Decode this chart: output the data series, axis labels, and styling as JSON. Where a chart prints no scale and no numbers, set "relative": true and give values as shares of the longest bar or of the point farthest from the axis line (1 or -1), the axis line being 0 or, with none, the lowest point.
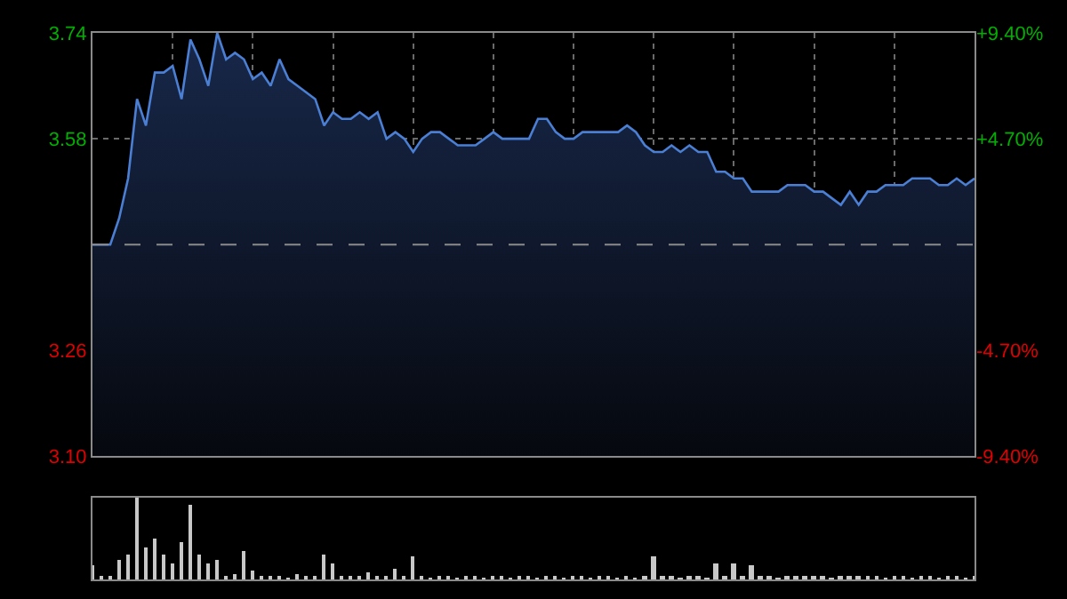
{
  "chart_data": [
    {
      "type": "area",
      "categories": [
        null,
        null,
        null,
        null,
        null,
        null,
        null,
        null,
        null,
        null,
        null,
        null,
        null,
        null,
        null,
        null,
        null,
        null,
        null,
        null,
        null,
        null,
        null,
        null,
        null,
        null,
        null,
        null,
        null,
        null,
        null,
        null,
        null,
        null,
        null,
        null,
        null,
        null,
        null,
        null,
        null,
        null,
        null,
        null,
        null,
        null,
        null,
        null,
        null,
        null,
        null,
        null,
        null,
        null,
        null,
        null,
        null,
        null,
        null,
        null,
        null,
        null,
        null,
        null,
        null,
        null,
        null,
        null,
        null,
        null,
        null,
        null,
        null,
        null,
        null,
        null,
        null,
        null,
        null,
        null,
        null,
        null,
        null,
        null,
        null,
        null,
        null,
        null,
        null,
        null,
        null,
        null,
        null,
        null,
        null,
        null,
        null,
        null,
        null,
        null
      ],
      "series": [
        {
          "color": "#4a7fd4",
          "values": [
            3.42,
            3.42,
            3.42,
            3.46,
            3.52,
            3.64,
            3.6,
            3.68,
            3.68,
            3.69,
            3.64,
            3.73,
            3.7,
            3.66,
            3.74,
            3.7,
            3.71,
            3.7,
            3.67,
            3.68,
            3.66,
            3.7,
            3.67,
            3.66,
            3.65,
            3.64,
            3.6,
            3.62,
            3.61,
            3.61,
            3.62,
            3.61,
            3.62,
            3.58,
            3.59,
            3.58,
            3.56,
            3.58,
            3.59,
            3.59,
            3.58,
            3.57,
            3.57,
            3.57,
            3.58,
            3.59,
            3.58,
            3.58,
            3.58,
            3.58,
            3.61,
            3.61,
            3.59,
            3.58,
            3.58,
            3.59,
            3.59,
            3.59,
            3.59,
            3.59,
            3.6,
            3.59,
            3.57,
            3.56,
            3.56,
            3.57,
            3.56,
            3.57,
            3.56,
            3.56,
            3.53,
            3.53,
            3.52,
            3.52,
            3.5,
            3.5,
            3.5,
            3.5,
            3.51,
            3.51,
            3.51,
            3.5,
            3.5,
            3.49,
            3.48,
            3.5,
            3.48,
            3.5,
            3.5,
            3.51,
            3.51,
            3.51,
            3.52,
            3.52,
            3.52,
            3.51,
            3.51,
            3.52,
            3.51,
            3.52
          ]
        }
      ],
      "ylim": [
        3.1,
        3.74
      ],
      "yticks": [
        {
          "value": 3.1,
          "label": "3.10"
        },
        3.26,
        3.58,
        3.74
      ],
      "y2lim": [
        -9.4,
        9.4
      ],
      "y2ticks": [
        {
          "value": -9.4,
          "label": "-9.40%"
        },
        {
          "value": -4.7,
          "label": "-4.70%"
        },
        {
          "value": 4.7,
          "label": "+4.70%"
        },
        {
          "value": 9.4,
          "label": "+9.40%"
        }
      ],
      "ref_lines": [
        {
          "axis": "y",
          "value": 3.42,
          "color": "#8a8a8a",
          "line_style": "dashed"
        }
      ],
      "grid": true
    },
    {
      "type": "bar",
      "relative": true,
      "categories": [
        null,
        null,
        null,
        null,
        null,
        null,
        null,
        null,
        null,
        null,
        null,
        null,
        null,
        null,
        null,
        null,
        null,
        null,
        null,
        null,
        null,
        null,
        null,
        null,
        null,
        null,
        null,
        null,
        null,
        null,
        null,
        null,
        null,
        null,
        null,
        null,
        null,
        null,
        null,
        null,
        null,
        null,
        null,
        null,
        null,
        null,
        null,
        null,
        null,
        null,
        null,
        null,
        null,
        null,
        null,
        null,
        null,
        null,
        null,
        null,
        null,
        null,
        null,
        null,
        null,
        null,
        null,
        null,
        null,
        null,
        null,
        null,
        null,
        null,
        null,
        null,
        null,
        null,
        null,
        null,
        null,
        null,
        null,
        null,
        null,
        null,
        null,
        null,
        null,
        null,
        null,
        null,
        null,
        null,
        null,
        null,
        null,
        null,
        null,
        null
      ],
      "series": [
        {
          "color": "#c8c8c8",
          "values": [
            0.18,
            0.06,
            0.04,
            0.25,
            0.3,
            1.0,
            0.4,
            0.5,
            0.3,
            0.2,
            0.45,
            0.92,
            0.3,
            0.2,
            0.25,
            0.06,
            0.08,
            0.35,
            0.12,
            0.06,
            0.04,
            0.05,
            0.03,
            0.08,
            0.05,
            0.04,
            0.3,
            0.2,
            0.05,
            0.04,
            0.06,
            0.1,
            0.04,
            0.05,
            0.13,
            0.04,
            0.28,
            0.05,
            0.03,
            0.04,
            0.05,
            0.03,
            0.04,
            0.06,
            0.03,
            0.05,
            0.04,
            0.03,
            0.05,
            0.04,
            0.03,
            0.05,
            0.04,
            0.03,
            0.04,
            0.05,
            0.03,
            0.04,
            0.05,
            0.03,
            0.04,
            0.03,
            0.05,
            0.28,
            0.06,
            0.04,
            0.03,
            0.05,
            0.04,
            0.03,
            0.2,
            0.05,
            0.2,
            0.04,
            0.18,
            0.05,
            0.04,
            0.03,
            0.05,
            0.04,
            0.06,
            0.04,
            0.05,
            0.03,
            0.04,
            0.06,
            0.05,
            0.04,
            0.06,
            0.03,
            0.04,
            0.05,
            0.03,
            0.04,
            0.05,
            0.03,
            0.04,
            0.06,
            0.03,
            0.04
          ]
        }
      ]
    }
  ]
}
